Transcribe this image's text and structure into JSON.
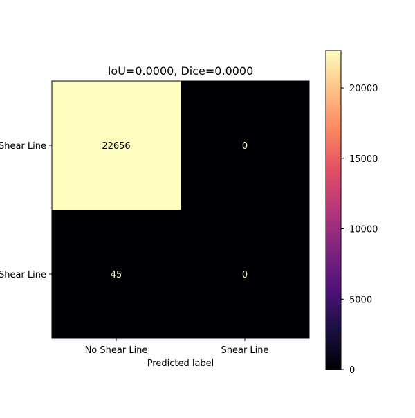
{
  "chart_data": {
    "type": "heatmap",
    "title": "IoU=0.0000, Dice=0.0000",
    "xlabel": "Predicted label",
    "ylabel": "",
    "x_categories": [
      "No Shear Line",
      "Shear Line"
    ],
    "y_categories": [
      "No Shear Line",
      "Shear Line"
    ],
    "matrix": [
      [
        22656,
        0
      ],
      [
        45,
        0
      ]
    ],
    "colormap": "magma",
    "colorbar": {
      "min": 0,
      "max": 22656,
      "ticks": [
        0,
        5000,
        10000,
        15000,
        20000
      ],
      "tick_labels": [
        "0",
        "5000",
        "10000",
        "15000",
        "20000"
      ]
    },
    "grid": false
  }
}
